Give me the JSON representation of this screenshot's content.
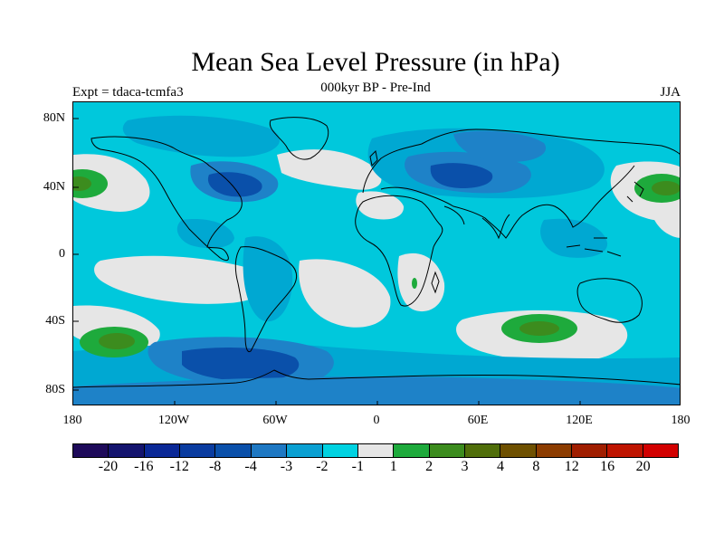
{
  "title": "Mean Sea Level Pressure (in hPa)",
  "subtitle": "000kyr BP - Pre-Ind",
  "experiment": "Expt = tdaca-tcmfa3",
  "season": "JJA",
  "lat_labels": [
    "80N",
    "40N",
    "0",
    "40S",
    "80S"
  ],
  "lon_labels": [
    "180",
    "120W",
    "60W",
    "0",
    "60E",
    "120E",
    "180"
  ],
  "colorbar": {
    "colors": [
      "#1e0a5a",
      "#14146e",
      "#0a2896",
      "#0a3ca0",
      "#0a50aa",
      "#1e78c3",
      "#0aa0d2",
      "#00d2e1",
      "#e6e6e6",
      "#1eaa3c",
      "#3c8c1e",
      "#506e0a",
      "#6e5000",
      "#8c3c00",
      "#a01e00",
      "#be1400",
      "#d20000"
    ],
    "labels": [
      "-20",
      "-16",
      "-12",
      "-8",
      "-4",
      "-3",
      "-2",
      "-1",
      "1",
      "2",
      "3",
      "4",
      "8",
      "12",
      "16",
      "20"
    ]
  },
  "field_colors": {
    "background": "#00c8dc",
    "neutral": "#e6e6e6",
    "light_blue": "#00a8d2",
    "mid_blue": "#1e82c8",
    "dark_blue": "#0a50aa",
    "green": "#1eaa3c",
    "dark_green": "#3c8c1e"
  }
}
